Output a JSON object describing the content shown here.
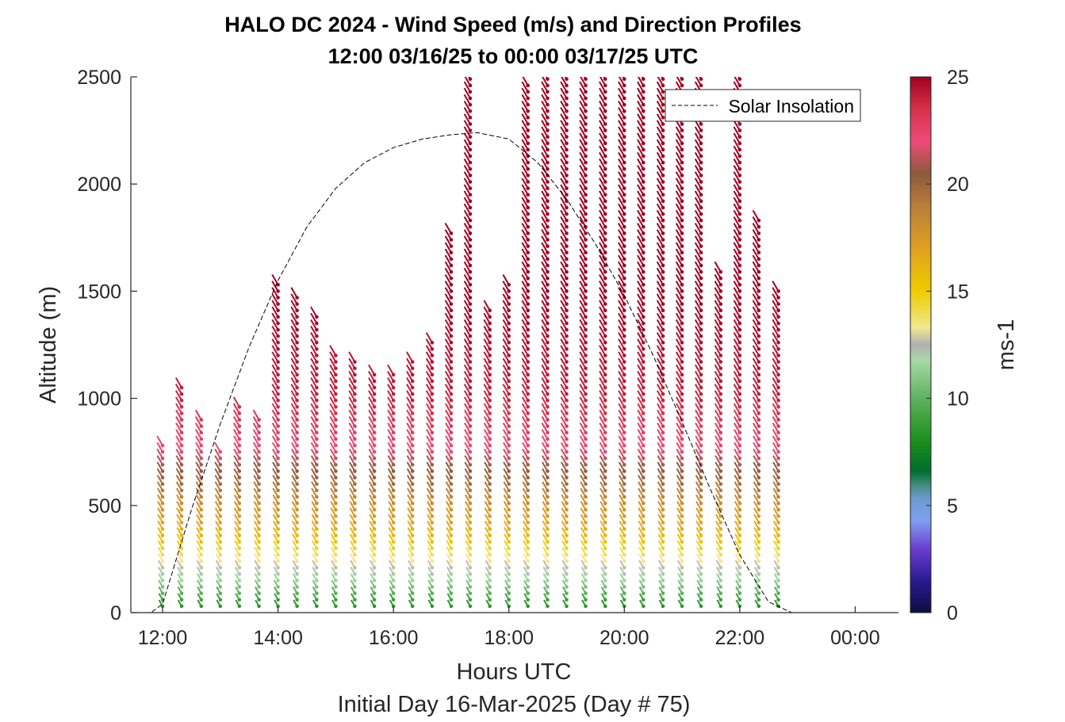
{
  "chart_data": {
    "type": "scatter",
    "title": "HALO DC 2024 - Wind Speed (m/s) and Direction Profiles",
    "subtitle": "12:00 03/16/25 to 00:00 03/17/25  UTC",
    "xlabel": "Hours UTC",
    "x_sublabel": "Initial Day 16-Mar-2025 (Day # 75)",
    "ylabel": "Altitude (m)",
    "xlim": [
      11.45,
      24.75
    ],
    "ylim": [
      0,
      2500
    ],
    "x_ticks": [
      12,
      14,
      16,
      18,
      20,
      22,
      24
    ],
    "x_tick_labels": [
      "12:00",
      "14:00",
      "16:00",
      "18:00",
      "20:00",
      "22:00",
      "00:00"
    ],
    "y_ticks": [
      0,
      500,
      1000,
      1500,
      2000,
      2500
    ],
    "y_tick_labels": [
      "0",
      "500",
      "1000",
      "1500",
      "2000",
      "2500"
    ],
    "colorbar": {
      "label": "ms-1",
      "range": [
        0,
        25
      ],
      "ticks": [
        0,
        5,
        10,
        15,
        20,
        25
      ],
      "tick_labels": [
        "0",
        "5",
        "10",
        "15",
        "20",
        "25"
      ],
      "stops": [
        {
          "value": 0,
          "color": "#0d0d40"
        },
        {
          "value": 1.5,
          "color": "#2a1a90"
        },
        {
          "value": 3,
          "color": "#6a3fd0"
        },
        {
          "value": 4.3,
          "color": "#7fa0ee"
        },
        {
          "value": 5.3,
          "color": "#6d9bd0"
        },
        {
          "value": 6,
          "color": "#3e8a7a"
        },
        {
          "value": 6.6,
          "color": "#006d2c"
        },
        {
          "value": 8,
          "color": "#1c8e1c"
        },
        {
          "value": 10,
          "color": "#5fb35f"
        },
        {
          "value": 11.8,
          "color": "#a8d8a8"
        },
        {
          "value": 12.5,
          "color": "#b0b0b0"
        },
        {
          "value": 13.3,
          "color": "#f0e890"
        },
        {
          "value": 15,
          "color": "#f0cc00"
        },
        {
          "value": 17,
          "color": "#e0a020"
        },
        {
          "value": 19,
          "color": "#b87d3a"
        },
        {
          "value": 20.5,
          "color": "#8c5a3c"
        },
        {
          "value": 22,
          "color": "#f04a78"
        },
        {
          "value": 23.5,
          "color": "#d8304a"
        },
        {
          "value": 25,
          "color": "#a00020"
        }
      ]
    },
    "legend": {
      "position": "top-right",
      "entries": [
        {
          "name": "Solar Insolation",
          "style": "dashed",
          "color": "#000000"
        }
      ]
    },
    "series": [
      {
        "name": "Solar Insolation",
        "kind": "dashed-line",
        "x": [
          11.45,
          11.8,
          12.0,
          12.5,
          13.0,
          13.5,
          14.0,
          14.5,
          15.0,
          15.5,
          16.0,
          16.5,
          17.0,
          17.45,
          18.0,
          18.5,
          19.0,
          19.5,
          20.0,
          20.5,
          21.0,
          21.5,
          22.0,
          22.5,
          22.9,
          23.5,
          24.75
        ],
        "y": [
          0,
          0,
          40,
          480,
          880,
          1240,
          1550,
          1800,
          1980,
          2100,
          2170,
          2210,
          2230,
          2240,
          2210,
          2100,
          1930,
          1720,
          1480,
          1200,
          890,
          570,
          270,
          50,
          0,
          0,
          0
        ]
      },
      {
        "name": "wind profiles",
        "kind": "wind-barbs",
        "profile_hours": [
          12.0,
          12.33,
          12.67,
          13.0,
          13.33,
          13.67,
          14.0,
          14.33,
          14.67,
          15.0,
          15.33,
          15.67,
          16.0,
          16.33,
          16.67,
          17.0,
          17.33,
          17.67,
          18.0,
          18.33,
          18.67,
          19.0,
          19.33,
          19.67,
          20.0,
          20.33,
          20.67,
          21.0,
          21.33,
          21.67,
          22.0,
          22.33,
          22.67
        ],
        "profile_tops_m": [
          790,
          1060,
          900,
          760,
          960,
          910,
          1540,
          1470,
          1400,
          1220,
          1170,
          1120,
          1120,
          1180,
          1270,
          1790,
          2500,
          1420,
          1540,
          2470,
          2500,
          2500,
          2500,
          2500,
          2500,
          2500,
          2500,
          2500,
          2500,
          1600,
          2500,
          1840,
          1510
        ],
        "speed_vs_altitude": {
          "altitude_m": [
            0,
            60,
            150,
            250,
            350,
            500,
            650,
            800,
            1000,
            1500,
            2500
          ],
          "speed_ms": [
            8,
            9,
            11.5,
            13.5,
            16,
            18,
            20.5,
            22.5,
            24,
            25,
            25
          ]
        },
        "direction_from_deg": 330
      }
    ]
  }
}
